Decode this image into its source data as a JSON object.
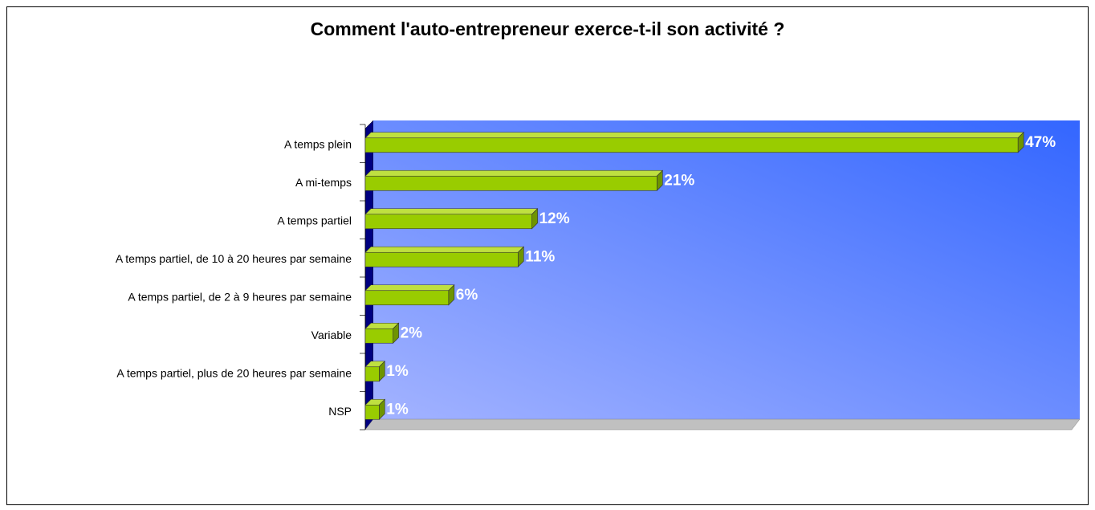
{
  "chart_data": {
    "type": "bar",
    "orientation": "horizontal",
    "title": "Comment l'auto-entrepreneur exerce-t-il son activité ?",
    "categories": [
      "A temps plein",
      "A mi-temps",
      "A temps partiel",
      "A temps partiel, de 10 à 20 heures par semaine",
      "A temps partiel, de 2 à 9 heures par semaine",
      "Variable",
      "A temps partiel, plus de 20 heures par semaine",
      "NSP"
    ],
    "values": [
      47,
      21,
      12,
      11,
      6,
      2,
      1,
      1
    ],
    "value_labels": [
      "47%",
      "21%",
      "12%",
      "11%",
      "6%",
      "2%",
      "1%",
      "1%"
    ],
    "color": "#99cc00",
    "xlim": [
      0,
      50
    ]
  }
}
